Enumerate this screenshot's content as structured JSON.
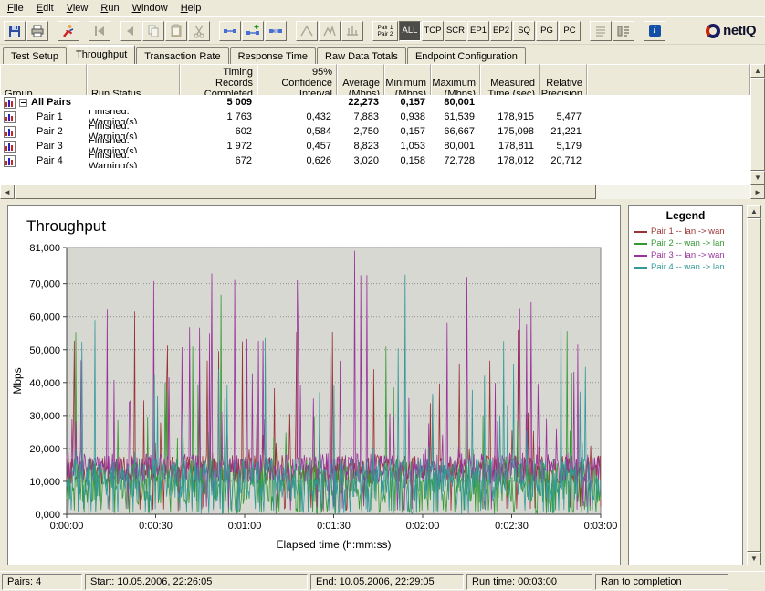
{
  "window": {
    "bg": "#ece9d8"
  },
  "menu_bar": {
    "items": [
      "File",
      "Edit",
      "View",
      "Run",
      "Window",
      "Help"
    ]
  },
  "toolbar": {
    "pair_selector": {
      "line1": "Pair 1",
      "line2": "Pair 2"
    },
    "filters": {
      "items": [
        "ALL",
        "TCP",
        "SCR",
        "EP1",
        "EP2",
        "SQ",
        "PG",
        "PC"
      ],
      "active": "ALL"
    },
    "info_label": "i",
    "logo_text": "netIQ"
  },
  "tabs": {
    "items": [
      "Test Setup",
      "Throughput",
      "Transaction Rate",
      "Response Time",
      "Raw Data Totals",
      "Endpoint Configuration"
    ],
    "active": "Throughput",
    "active_index": 1
  },
  "pairs_table": {
    "columns": [
      "Group",
      "Run Status",
      "Timing Records\nCompleted",
      "95% Confidence\nInterval",
      "Average\n(Mbps)",
      "Minimum\n(Mbps)",
      "Maximum\n(Mbps)",
      "Measured\nTime (sec)",
      "Relative\nPrecision"
    ],
    "rows": [
      {
        "group": "All Pairs",
        "run_status": "",
        "timing_records": "5 009",
        "confidence": "",
        "average": "22,273",
        "minimum": "0,157",
        "maximum": "80,001",
        "measured_time": "",
        "relative_precision": ""
      },
      {
        "group": "Pair 1",
        "run_status": "Finished: Warning(s)",
        "timing_records": "1 763",
        "confidence": "0,432",
        "average": "7,883",
        "minimum": "0,938",
        "maximum": "61,539",
        "measured_time": "178,915",
        "relative_precision": "5,477"
      },
      {
        "group": "Pair 2",
        "run_status": "Finished: Warning(s)",
        "timing_records": "602",
        "confidence": "0,584",
        "average": "2,750",
        "minimum": "0,157",
        "maximum": "66,667",
        "measured_time": "175,098",
        "relative_precision": "21,221"
      },
      {
        "group": "Pair 3",
        "run_status": "Finished: Warning(s)",
        "timing_records": "1 972",
        "confidence": "0,457",
        "average": "8,823",
        "minimum": "1,053",
        "maximum": "80,001",
        "measured_time": "178,811",
        "relative_precision": "5,179"
      },
      {
        "group": "Pair 4",
        "run_status": "Finished: Warning(s)",
        "timing_records": "672",
        "confidence": "0,626",
        "average": "3,020",
        "minimum": "0,158",
        "maximum": "72,728",
        "measured_time": "178,012",
        "relative_precision": "20,712"
      }
    ]
  },
  "chart_data": {
    "type": "line",
    "title": "Throughput",
    "xlabel": "Elapsed time (h:mm:ss)",
    "ylabel": "Mbps",
    "ylim": [
      0,
      81
    ],
    "xlim_seconds": [
      0,
      180
    ],
    "grid": "horizontal-dotted",
    "plot_bg": "#d8d8d3",
    "grid_color": "#8f8f8f",
    "legend_position": "right-panel",
    "y_ticks": [
      {
        "v": 0,
        "label": "0,000"
      },
      {
        "v": 10,
        "label": "10,000"
      },
      {
        "v": 20,
        "label": "20,000"
      },
      {
        "v": 30,
        "label": "30,000"
      },
      {
        "v": 40,
        "label": "40,000"
      },
      {
        "v": 50,
        "label": "50,000"
      },
      {
        "v": 60,
        "label": "60,000"
      },
      {
        "v": 70,
        "label": "70,000"
      },
      {
        "v": 81,
        "label": "81,000"
      }
    ],
    "x_ticks": [
      {
        "v": 0,
        "label": "0:00:00"
      },
      {
        "v": 30,
        "label": "0:00:30"
      },
      {
        "v": 60,
        "label": "0:01:00"
      },
      {
        "v": 90,
        "label": "0:01:30"
      },
      {
        "v": 120,
        "label": "0:02:00"
      },
      {
        "v": 150,
        "label": "0:02:30"
      },
      {
        "v": 180,
        "label": "0:03:00"
      }
    ],
    "series": [
      {
        "name": "Pair 1 -- lan -> wan",
        "color": "#993333",
        "avg_mbps": 7.883,
        "min_mbps": 0.938,
        "max_mbps": 61.539,
        "seed": 101,
        "base": 13.5,
        "jitter": 4.5,
        "spike_prob": 0.1,
        "dip_prob": 0.05,
        "peak_time_s": 23,
        "points": 700
      },
      {
        "name": "Pair 2 -- wan -> lan",
        "color": "#339933",
        "avg_mbps": 2.75,
        "min_mbps": 0.157,
        "max_mbps": 66.667,
        "seed": 202,
        "base": 10.0,
        "jitter": 7.0,
        "spike_prob": 0.07,
        "dip_prob": 0.12,
        "peak_time_s": 52,
        "points": 700
      },
      {
        "name": "Pair 3 -- lan -> wan",
        "color": "#993399",
        "avg_mbps": 8.823,
        "min_mbps": 1.053,
        "max_mbps": 80.001,
        "seed": 303,
        "base": 14.0,
        "jitter": 4.5,
        "spike_prob": 0.11,
        "dip_prob": 0.05,
        "peak_time_s": 97,
        "points": 700
      },
      {
        "name": "Pair 4 -- wan -> lan",
        "color": "#339999",
        "avg_mbps": 3.02,
        "min_mbps": 0.158,
        "max_mbps": 72.728,
        "seed": 404,
        "base": 10.5,
        "jitter": 6.5,
        "spike_prob": 0.07,
        "dip_prob": 0.12,
        "peak_time_s": 114,
        "points": 700
      }
    ]
  },
  "legend_panel": {
    "title": "Legend",
    "entries": [
      {
        "label": "Pair 1 -- lan -> wan",
        "color": "#993333"
      },
      {
        "label": "Pair 2 -- wan -> lan",
        "color": "#339933"
      },
      {
        "label": "Pair 3 -- lan -> wan",
        "color": "#993399"
      },
      {
        "label": "Pair 4 -- wan -> lan",
        "color": "#339999"
      }
    ]
  },
  "status_bar": {
    "segments": [
      "Pairs: 4",
      "Start: 10.05.2006, 22:26:05",
      "End: 10.05.2006, 22:29:05",
      "Run time: 00:03:00",
      "Ran to completion"
    ]
  }
}
